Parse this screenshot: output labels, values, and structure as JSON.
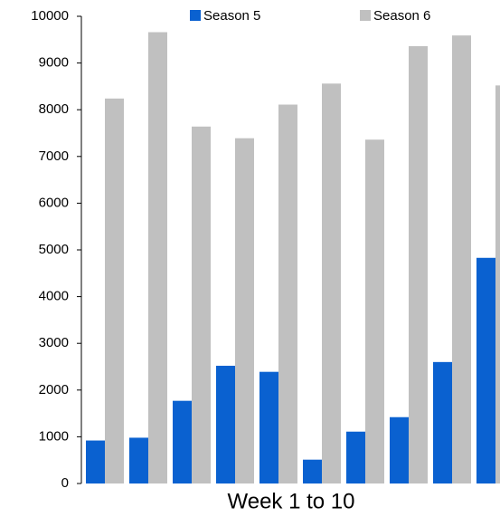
{
  "chart_data": {
    "type": "bar",
    "categories": [
      null,
      null,
      null,
      null,
      null,
      null,
      null,
      null,
      null,
      null
    ],
    "series": [
      {
        "name": "Season 5",
        "color": "#0a61d0",
        "values": [
          920,
          980,
          1770,
          2520,
          2390,
          510,
          1110,
          1420,
          2600,
          4830
        ]
      },
      {
        "name": "Season 6",
        "color": "#c0c0c0",
        "values": [
          8240,
          9660,
          7640,
          7390,
          8110,
          8560,
          7360,
          9360,
          9590,
          8520
        ]
      }
    ],
    "x_label": "Week 1 to 10",
    "ylim": [
      0,
      10000
    ],
    "yticks": [
      0,
      1000,
      2000,
      3000,
      4000,
      5000,
      6000,
      7000,
      8000,
      9000,
      10000
    ],
    "legend": "top"
  }
}
